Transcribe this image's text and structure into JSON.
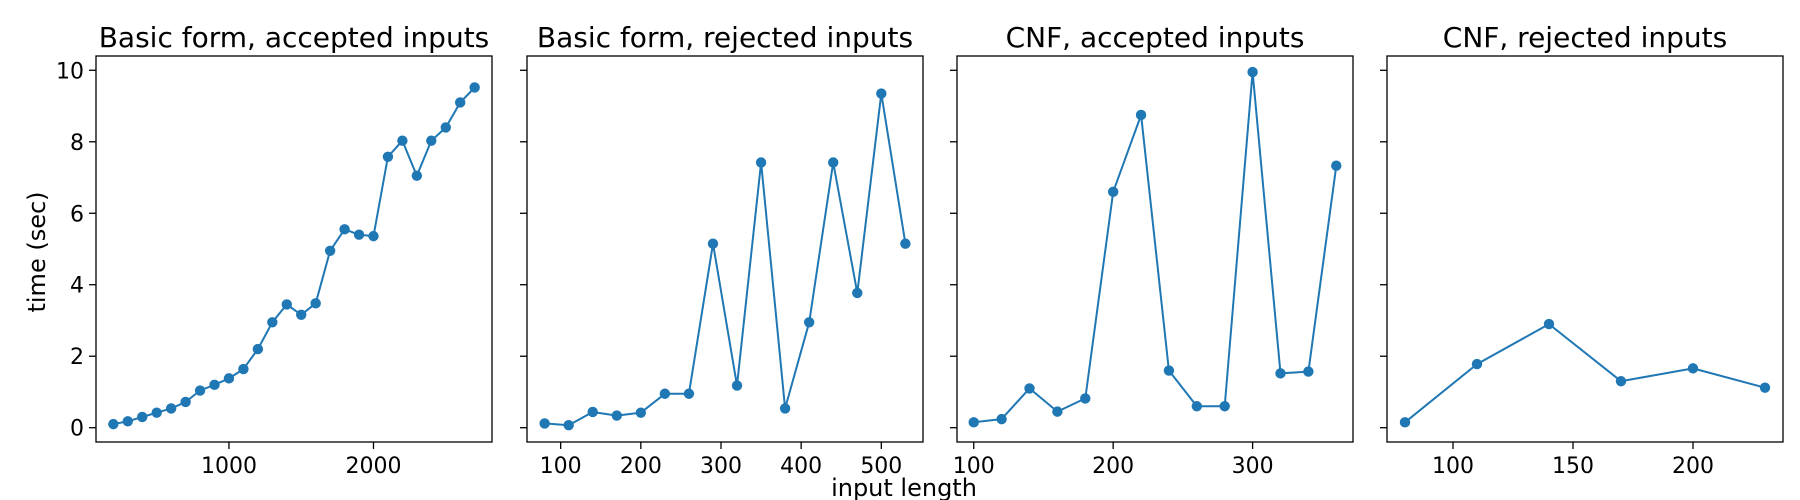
{
  "figure": {
    "shared_xlabel": "input length",
    "shared_ylabel": "time (sec)",
    "colors": {
      "series": "#1f77b4",
      "axes": "#000000",
      "background": "#ffffff"
    }
  },
  "chart_data": [
    {
      "type": "line",
      "title": "Basic form, accepted inputs",
      "xlabel": "",
      "ylabel": "time (sec)",
      "xlim": [
        80,
        2820
      ],
      "ylim": [
        -0.4,
        10.4
      ],
      "xticks": [
        1000,
        2000
      ],
      "yticks": [
        0,
        2,
        4,
        6,
        8,
        10
      ],
      "x": [
        200,
        300,
        400,
        500,
        600,
        700,
        800,
        900,
        1000,
        1100,
        1200,
        1300,
        1400,
        1500,
        1600,
        1700,
        1800,
        1900,
        2000,
        2100,
        2200,
        2300,
        2400,
        2500,
        2600,
        2700
      ],
      "y": [
        0.1,
        0.18,
        0.3,
        0.42,
        0.54,
        0.72,
        1.04,
        1.2,
        1.38,
        1.64,
        2.2,
        2.95,
        3.45,
        3.16,
        3.48,
        4.95,
        5.55,
        5.4,
        5.36,
        7.58,
        8.03,
        7.05,
        8.03,
        8.4,
        9.1,
        9.52
      ],
      "marker": "o",
      "grid": false
    },
    {
      "type": "line",
      "title": "Basic form, rejected inputs",
      "xlabel": "",
      "ylabel": "",
      "xlim": [
        58,
        552
      ],
      "ylim": [
        -0.4,
        10.4
      ],
      "xticks": [
        100,
        200,
        300,
        400,
        500
      ],
      "yticks": [
        0,
        2,
        4,
        6,
        8,
        10
      ],
      "x": [
        80,
        110,
        140,
        170,
        200,
        230,
        260,
        290,
        320,
        350,
        380,
        410,
        440,
        470,
        500,
        530
      ],
      "y": [
        0.12,
        0.07,
        0.44,
        0.34,
        0.42,
        0.95,
        0.95,
        5.15,
        1.18,
        7.42,
        0.54,
        2.95,
        7.42,
        3.77,
        9.35,
        5.15
      ],
      "marker": "o",
      "grid": false
    },
    {
      "type": "line",
      "title": "CNF, accepted inputs",
      "xlabel": "",
      "ylabel": "",
      "xlim": [
        88,
        372
      ],
      "ylim": [
        -0.4,
        10.4
      ],
      "xticks": [
        100,
        200,
        300
      ],
      "yticks": [
        0,
        2,
        4,
        6,
        8,
        10
      ],
      "x": [
        100,
        120,
        140,
        160,
        180,
        200,
        220,
        240,
        260,
        280,
        300,
        320,
        340,
        360
      ],
      "y": [
        0.15,
        0.24,
        1.1,
        0.45,
        0.82,
        6.6,
        8.75,
        1.6,
        0.6,
        0.6,
        9.95,
        1.52,
        1.57,
        7.33
      ],
      "marker": "o",
      "grid": false
    },
    {
      "type": "line",
      "title": "CNF, rejected inputs",
      "xlabel": "",
      "ylabel": "",
      "xlim": [
        72.5,
        237.5
      ],
      "ylim": [
        -0.4,
        10.4
      ],
      "xticks": [
        100,
        150,
        200
      ],
      "yticks": [
        0,
        2,
        4,
        6,
        8,
        10
      ],
      "x": [
        80,
        110,
        140,
        170,
        200,
        230
      ],
      "y": [
        0.15,
        1.78,
        2.9,
        1.3,
        1.66,
        1.12
      ],
      "marker": "o",
      "grid": false
    }
  ]
}
